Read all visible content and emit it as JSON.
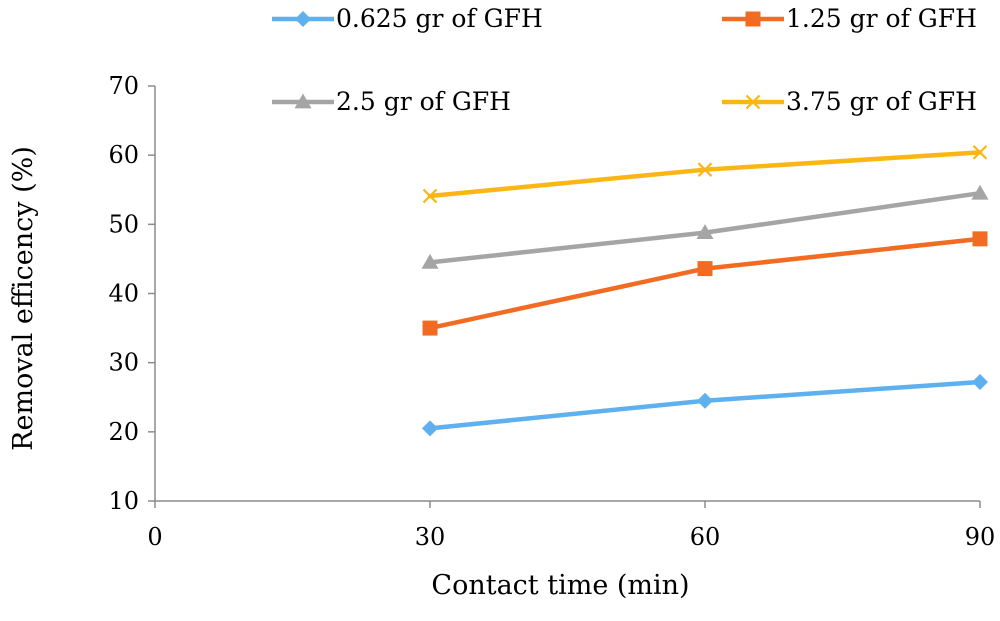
{
  "chart_data": {
    "type": "line",
    "title": "",
    "xlabel": "Contact time (min)",
    "ylabel": "Removal efficency (%)",
    "xlim": [
      0,
      90
    ],
    "ylim": [
      10,
      70
    ],
    "xticks": [
      0,
      30,
      60,
      90
    ],
    "yticks": [
      10,
      20,
      30,
      40,
      50,
      60,
      70
    ],
    "grid": false,
    "legend_position": "top",
    "x": [
      30,
      60,
      90
    ],
    "series": [
      {
        "name": "0.625 gr of GFH",
        "values": [
          20.5,
          24.5,
          27.2
        ],
        "color": "#5eb0ee",
        "marker": "diamond"
      },
      {
        "name": "1.25 gr of GFH",
        "values": [
          35.0,
          43.6,
          47.9
        ],
        "color": "#f26b22",
        "marker": "square"
      },
      {
        "name": "2.5 gr of GFH",
        "values": [
          44.5,
          48.8,
          54.5
        ],
        "color": "#a5a5a5",
        "marker": "triangle"
      },
      {
        "name": "3.75 gr of GFH",
        "values": [
          54.1,
          57.9,
          60.4
        ],
        "color": "#fcb614",
        "marker": "x"
      }
    ]
  }
}
